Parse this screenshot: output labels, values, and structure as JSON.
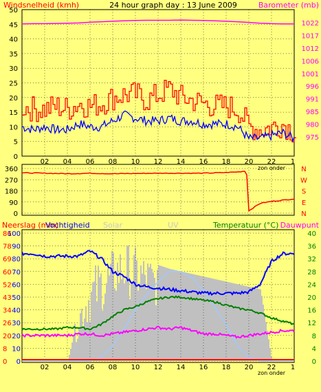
{
  "title": "24 hour graph day : 13 June 2009",
  "hours_labels": [
    "02",
    "04",
    "06",
    "08",
    "10",
    "12",
    "14",
    "16",
    "18",
    "20",
    "22"
  ],
  "sun_label": "zon onder",
  "top_panel": {
    "left_label": "Windsnelheid (kmh)",
    "right_label": "Barometer (mb)",
    "left_ticks": [
      0,
      5,
      10,
      15,
      20,
      25,
      30,
      35,
      40,
      45,
      50
    ],
    "right_ticks": [
      975,
      980,
      985,
      991,
      996,
      1001,
      1006,
      1012,
      1017,
      1022
    ]
  },
  "mid_panel": {
    "left_ticks": [
      0,
      90,
      180,
      270,
      360
    ],
    "right_ticks": [
      "N",
      "E",
      "S",
      "W",
      "N"
    ]
  },
  "bottom_panel": {
    "labels": {
      "neerslag": "Neerslag (mm)",
      "vochtigheid": "Vochtigheid",
      "solar": "Solar",
      "uv": "UV",
      "temperatuur": "Temperatuur (°C)",
      "dauwpunt": "Dauwpunt"
    },
    "left_ticks": [
      0,
      8,
      20,
      26,
      34,
      43,
      52,
      60,
      69,
      78,
      86,
      100
    ],
    "left2_ticks": [
      0,
      10,
      20,
      30,
      40,
      50,
      60,
      70,
      80,
      90,
      100
    ],
    "right_ticks": [
      0,
      4,
      8,
      12,
      16,
      20,
      24,
      28,
      32,
      36,
      40
    ]
  },
  "colors": {
    "background": "#ffff80",
    "wind_avg": "#0000ff",
    "wind_gust": "#ff0000",
    "barometer": "#ff00ff",
    "direction": "#ff0000",
    "humidity": "#0000ff",
    "temperature": "#008000",
    "dewpoint": "#ff00ff",
    "solar": "#c0c0c0",
    "uv": "#a0c8ff",
    "rain": "#ff0000"
  },
  "chart_data": [
    {
      "type": "line",
      "title": "24 hour graph day : 13 June 2009",
      "xlabel": "",
      "x_hours": [
        0,
        1,
        2,
        3,
        4,
        5,
        6,
        7,
        8,
        9,
        10,
        11,
        12,
        13,
        14,
        15,
        16,
        17,
        18,
        19,
        20,
        21,
        22,
        23,
        24
      ],
      "series": [
        {
          "name": "Windsnelheid (kmh)",
          "axis": "left",
          "ylim": [
            0,
            50
          ],
          "values": [
            10,
            9,
            10,
            9,
            9,
            11,
            10,
            10,
            12,
            14,
            13,
            12,
            12,
            13,
            12,
            12,
            11,
            11,
            11,
            10,
            6,
            6,
            7,
            8,
            6
          ]
        },
        {
          "name": "",
          "axis": "left",
          "ylim": [
            0,
            50
          ],
          "values": [
            17,
            16,
            16,
            17,
            16,
            18,
            17,
            18,
            20,
            21,
            21,
            19,
            21,
            23,
            20,
            19,
            18,
            17,
            17,
            16,
            10,
            9,
            10,
            11,
            8
          ]
        },
        {
          "name": "Barometer (mb)",
          "axis": "right",
          "ylim": [
            975,
            1025
          ],
          "values": [
            1021.5,
            1021.6,
            1021.6,
            1021.7,
            1021.8,
            1021.9,
            1022.2,
            1022.4,
            1022.6,
            1022.8,
            1022.9,
            1023.0,
            1023.0,
            1023.0,
            1023.1,
            1023.0,
            1022.9,
            1022.8,
            1022.6,
            1022.4,
            1022.1,
            1021.8,
            1021.6,
            1021.5,
            1021.5
          ]
        }
      ]
    },
    {
      "type": "line",
      "ylabel": "",
      "ylim": [
        0,
        360
      ],
      "x_hours": [
        0,
        2,
        4,
        6,
        8,
        10,
        12,
        14,
        16,
        18,
        19,
        19.8,
        20,
        21,
        22,
        23,
        24
      ],
      "series": [
        {
          "name": "",
          "values": [
            325,
            322,
            318,
            322,
            318,
            320,
            322,
            322,
            322,
            328,
            332,
            340,
            20,
            80,
            95,
            105,
            115
          ]
        }
      ]
    },
    {
      "type": "line",
      "x_hours": [
        0,
        1,
        2,
        3,
        4,
        5,
        6,
        7,
        8,
        9,
        10,
        11,
        12,
        13,
        14,
        15,
        16,
        17,
        18,
        19,
        20,
        21,
        22,
        23,
        24
      ],
      "series": [
        {
          "name": "Vochtigheid",
          "axis": "left2",
          "ylim": [
            0,
            100
          ],
          "values": [
            84,
            84,
            82,
            82,
            82,
            82,
            86,
            80,
            70,
            66,
            60,
            58,
            57,
            56,
            55,
            54,
            53,
            53,
            53,
            53,
            54,
            60,
            78,
            84,
            84
          ]
        },
        {
          "name": "Temperatuur (°C)",
          "axis": "right",
          "ylim": [
            0,
            40
          ],
          "values": [
            10,
            10,
            10,
            10,
            10.5,
            10.5,
            10,
            11.5,
            14,
            16,
            17,
            18.5,
            19.5,
            20,
            20,
            19.5,
            19,
            18.5,
            17.5,
            16.5,
            16,
            15,
            13.5,
            12.5,
            11.5
          ]
        },
        {
          "name": "Dauwpunt",
          "axis": "right",
          "ylim": [
            0,
            40
          ],
          "values": [
            8,
            8,
            8,
            8,
            8,
            8.5,
            8.5,
            8,
            8.5,
            9,
            9.5,
            10,
            10.5,
            10,
            10.5,
            9.5,
            8.5,
            8.5,
            8,
            7.5,
            8,
            8.5,
            9,
            9.5,
            9.5
          ]
        },
        {
          "name": "Solar",
          "axis": "left2",
          "ylim": [
            0,
            100
          ],
          "values": [
            0,
            0,
            0,
            0,
            0,
            40,
            60,
            70,
            85,
            90,
            85,
            80,
            75,
            72,
            70,
            68,
            66,
            64,
            62,
            60,
            58,
            56,
            0,
            0,
            0
          ]
        },
        {
          "name": "UV",
          "axis": "left2",
          "ylim": [
            0,
            100
          ],
          "values": [
            0,
            0,
            0,
            0,
            0,
            0,
            0,
            3,
            12,
            25,
            40,
            52,
            62,
            70,
            70,
            65,
            55,
            42,
            28,
            12,
            3,
            0,
            0,
            0,
            0
          ]
        },
        {
          "name": "Neerslag (mm)",
          "axis": "left",
          "ylim": [
            0,
            100
          ],
          "values": [
            0,
            0,
            0,
            0,
            0,
            0,
            0,
            0,
            0,
            0,
            0,
            0,
            0,
            0,
            0,
            0,
            0,
            0,
            0,
            0,
            0,
            0,
            0,
            0,
            0
          ]
        }
      ]
    }
  ]
}
